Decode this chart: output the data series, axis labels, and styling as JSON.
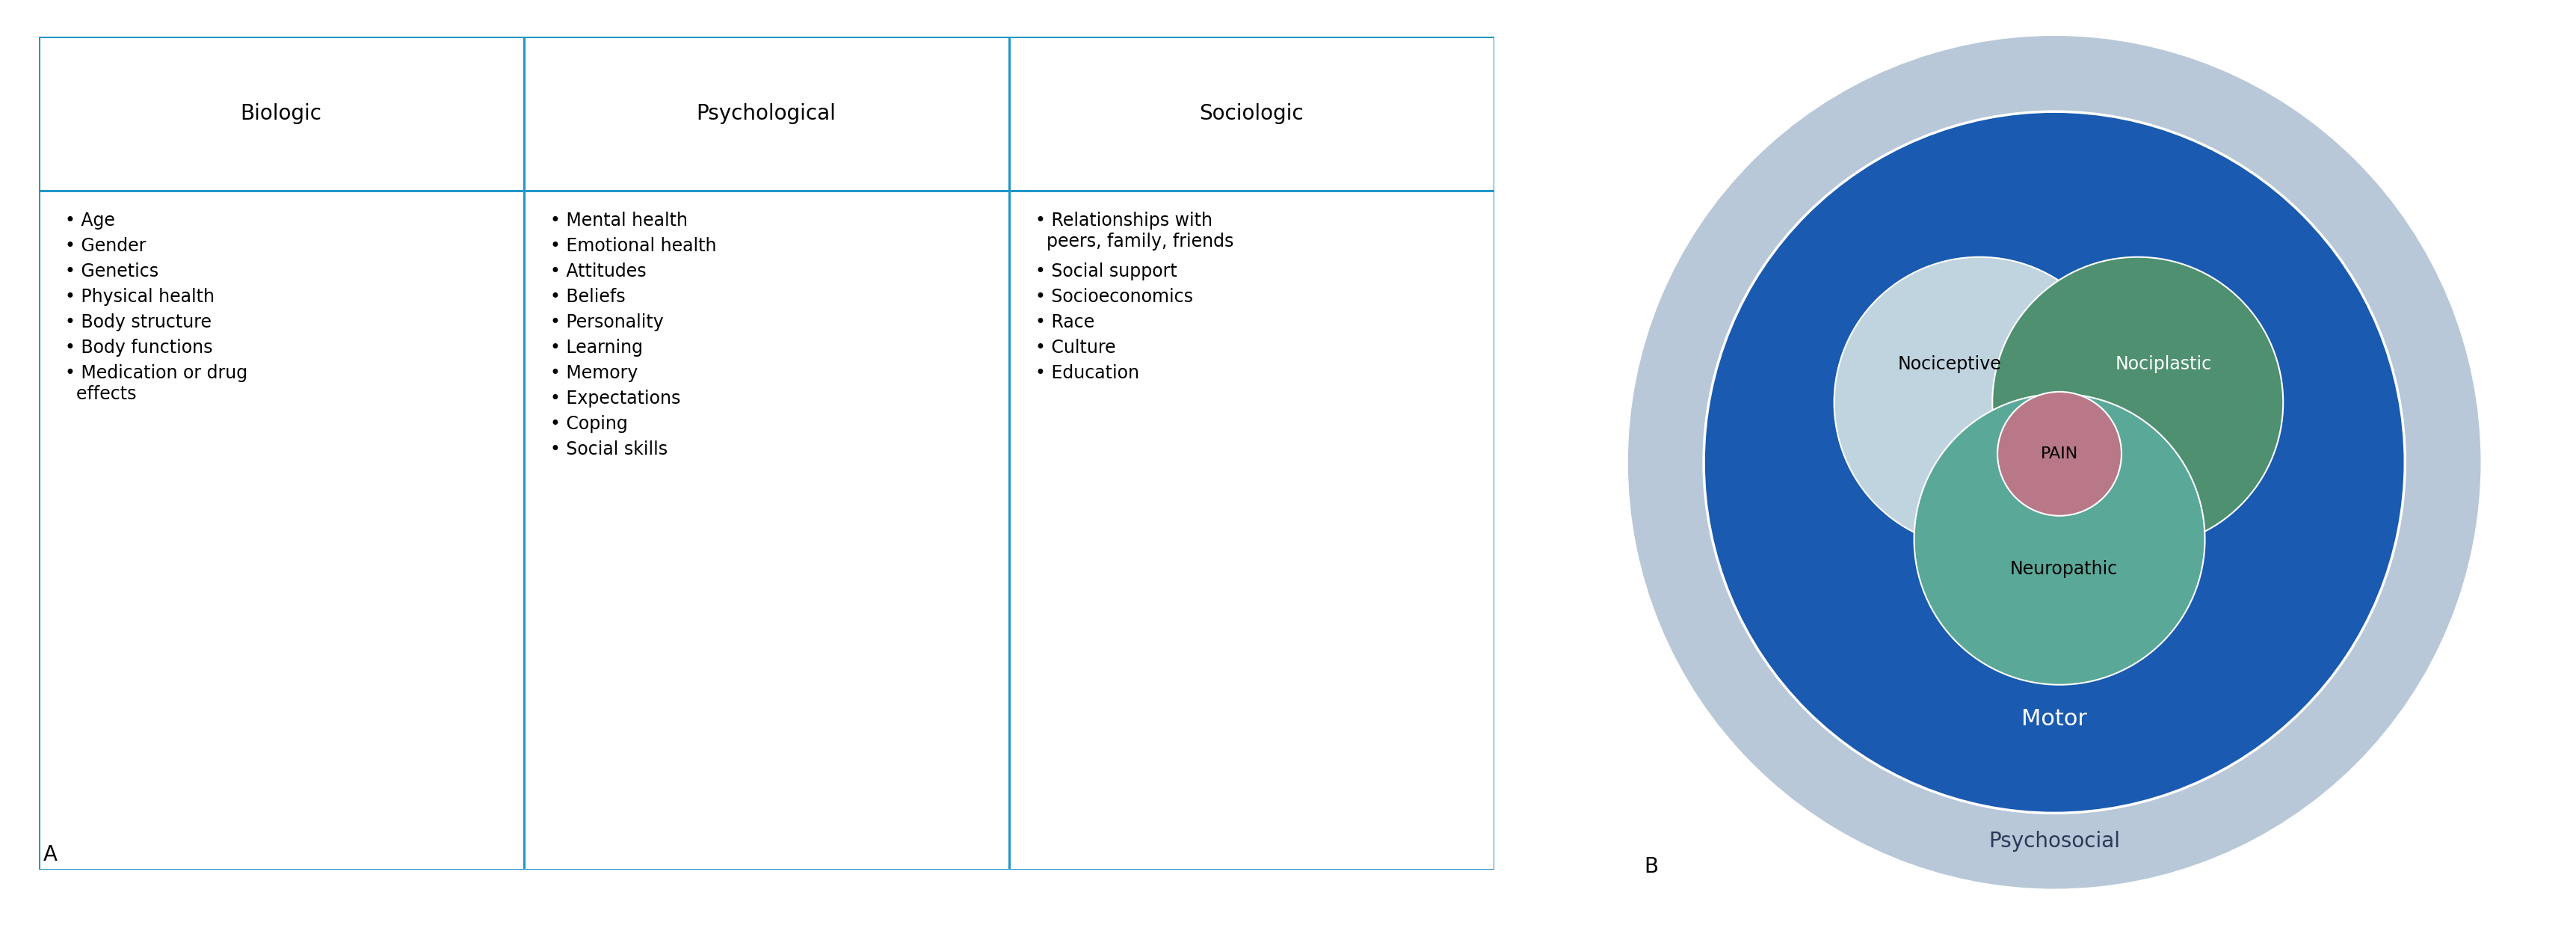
{
  "fig_width": 34.46,
  "fig_height": 12.37,
  "background_color": "#ffffff",
  "border_color": "#2196c8",
  "border_linewidth": 2.2,
  "col_headers": [
    "Biologic",
    "Psychological",
    "Sociologic"
  ],
  "col_header_fontsize": 20,
  "col_items_fontsize": 17,
  "biologic_items": [
    "• Age",
    "• Gender",
    "• Genetics",
    "• Physical health",
    "• Body structure",
    "• Body functions",
    "• Medication or drug\n  effects"
  ],
  "psychological_items": [
    "• Mental health",
    "• Emotional health",
    "• Attitudes",
    "• Beliefs",
    "• Personality",
    "• Learning",
    "• Memory",
    "• Expectations",
    "• Coping",
    "• Social skills"
  ],
  "sociologic_items": [
    "• Relationships with\n  peers, family, friends",
    "• Social support",
    "• Socioeconomics",
    "• Race",
    "• Culture",
    "• Education"
  ],
  "label_A": "A",
  "label_B": "B",
  "label_fontsize": 20,
  "psychosocial_color": "#b8c8d8",
  "motor_color": "#1a5ab0",
  "nociceptive_color": "#c0d4e0",
  "nociplastic_color": "#4e9070",
  "neuropathic_color": "#5aa898",
  "pain_color": "#b87888",
  "circle_text_color_dark": "#000000",
  "circle_text_color_light": "#ffffff",
  "motor_label": "Motor",
  "psychosocial_label": "Psychosocial",
  "nociceptive_label": "Nociceptive",
  "nociplastic_label": "Nociplastic",
  "neuropathic_label": "Neuropathic",
  "pain_label": "PAIN",
  "circle_fontsize": 17,
  "motor_fontsize": 22,
  "psychosocial_fontsize": 20
}
